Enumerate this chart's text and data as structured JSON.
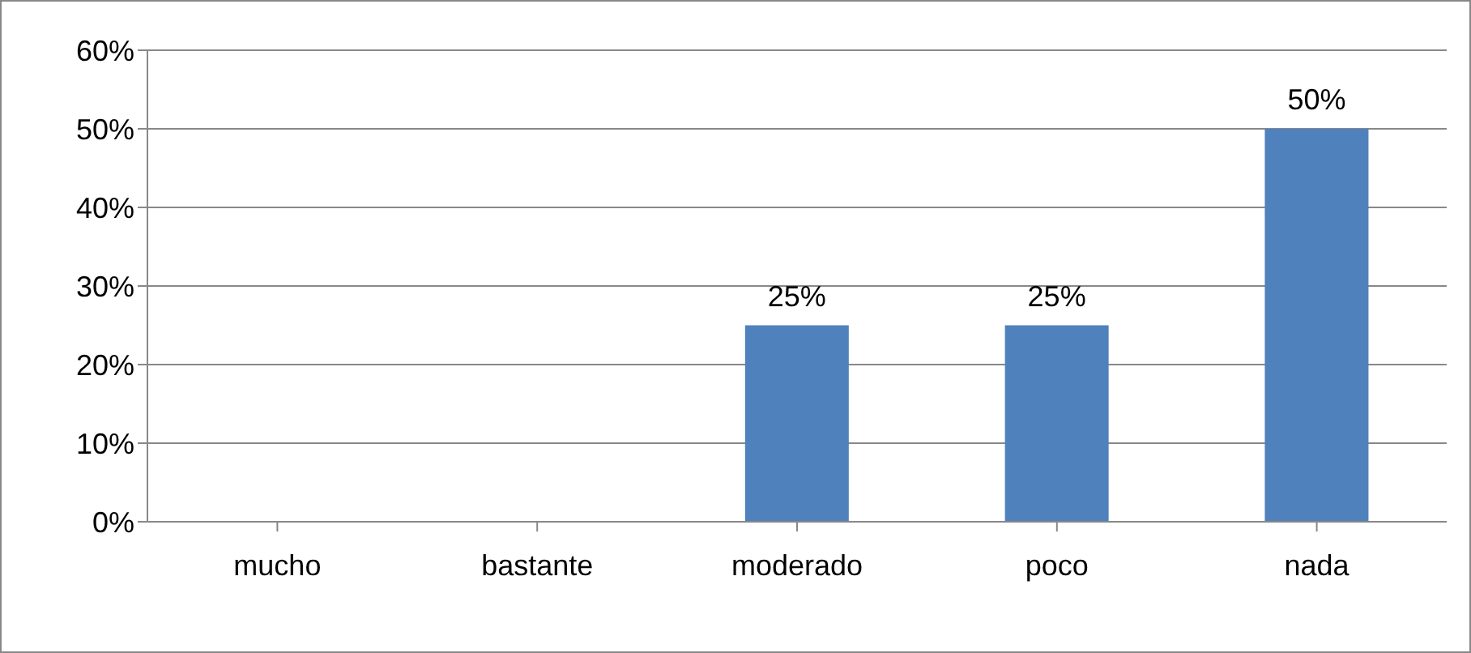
{
  "chart_data": {
    "type": "bar",
    "categories": [
      "mucho",
      "bastante",
      "moderado",
      "poco",
      "nada"
    ],
    "values": [
      0,
      0,
      25,
      25,
      50
    ],
    "color": "#4f81bd",
    "value_labels": [
      null,
      null,
      "25%",
      "25%",
      "50%"
    ],
    "ylim": [
      0,
      60
    ],
    "yticks": [
      {
        "value": 0,
        "label": "0%"
      },
      {
        "value": 10,
        "label": "10%"
      },
      {
        "value": 20,
        "label": "20%"
      },
      {
        "value": 30,
        "label": "30%"
      },
      {
        "value": 40,
        "label": "40%"
      },
      {
        "value": 50,
        "label": "50%"
      },
      {
        "value": 60,
        "label": "60%"
      }
    ],
    "grid": "y",
    "legend": false
  }
}
